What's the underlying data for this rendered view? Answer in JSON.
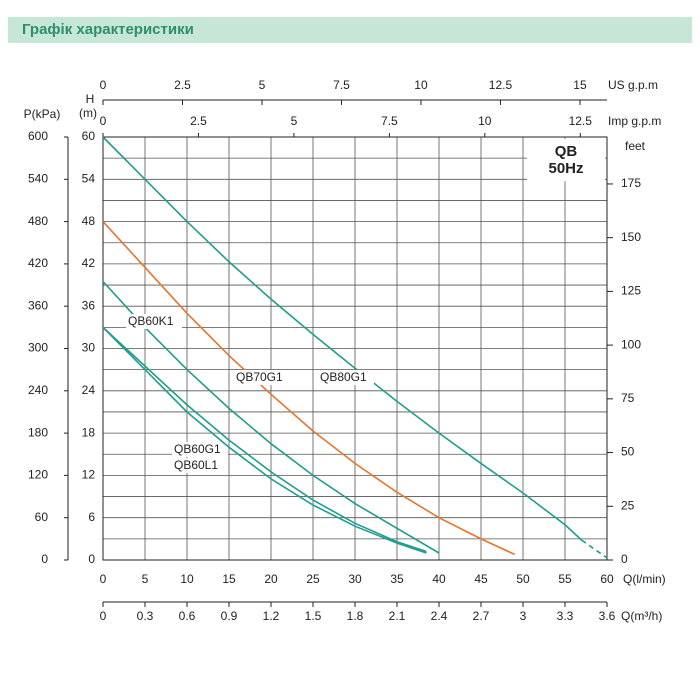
{
  "chart_data": {
    "type": "line",
    "title": "Графік характеристики",
    "annotation_lines": [
      "QB",
      "50Hz"
    ],
    "xlabel": "Q(l/min)",
    "xlim": [
      0,
      60
    ],
    "xticks": [
      0,
      5,
      10,
      15,
      20,
      25,
      30,
      35,
      40,
      45,
      50,
      55,
      60
    ],
    "ylabel": [
      "H",
      "(m)"
    ],
    "ylim": [
      0,
      60
    ],
    "yticks": [
      0,
      6,
      12,
      18,
      24,
      30,
      36,
      42,
      48,
      54,
      60
    ],
    "ygrid": [
      0,
      3,
      6,
      9,
      12,
      15,
      18,
      21,
      24,
      27,
      30,
      33,
      36,
      39,
      42,
      45,
      48,
      51,
      54,
      57,
      60
    ],
    "grid": true,
    "axes": {
      "pressure": {
        "label": "P(kPa)",
        "lim": [
          0,
          600
        ],
        "ticks": [
          0,
          60,
          120,
          180,
          240,
          300,
          360,
          420,
          480,
          540,
          600
        ]
      },
      "feet": {
        "label": "feet",
        "lim": [
          0,
          196.85
        ],
        "ticks": [
          0,
          25,
          50,
          75,
          100,
          125,
          150,
          175
        ]
      },
      "us_gpm": {
        "label": "US  g.p.m",
        "lim": [
          0,
          15.85
        ],
        "ticks": [
          0,
          2.5,
          5,
          7.5,
          10,
          12.5,
          15
        ]
      },
      "imp_gpm": {
        "label": "Imp  g.p.m",
        "lim": [
          0,
          13.2
        ],
        "ticks": [
          0,
          2.5,
          5,
          7.5,
          10,
          12.5
        ]
      },
      "m3h": {
        "label": "Q(m³/h)",
        "lim": [
          0,
          3.6
        ],
        "ticks": [
          0,
          0.3,
          0.6,
          0.9,
          1.2,
          1.5,
          1.8,
          2.1,
          2.4,
          2.7,
          3,
          3.3,
          3.6
        ]
      }
    },
    "series": [
      {
        "name": "QB80G1",
        "color": "#1f9d8e",
        "dashed_from": 57,
        "x": [
          0,
          5,
          10,
          15,
          20,
          25,
          30,
          35,
          40,
          45,
          50,
          55,
          57,
          60
        ],
        "values": [
          60,
          54,
          48,
          42.3,
          37,
          32,
          27.2,
          22.5,
          18,
          13.7,
          9.5,
          5,
          2.8,
          0.3
        ]
      },
      {
        "name": "QB70G1",
        "color": "#e8742c",
        "x": [
          0,
          5,
          10,
          15,
          20,
          25,
          30,
          35,
          40,
          45,
          49
        ],
        "values": [
          48,
          41.5,
          35,
          29,
          23.5,
          18.3,
          13.7,
          9.6,
          6,
          3,
          0.8
        ]
      },
      {
        "name": "QB60K1",
        "color": "#1f9d8e",
        "x": [
          0,
          5,
          10,
          15,
          20,
          25,
          30,
          35,
          40
        ],
        "values": [
          39.5,
          33,
          27,
          21.5,
          16.5,
          12,
          8,
          4.5,
          1
        ]
      },
      {
        "name": "QB60G1",
        "color": "#1f9d8e",
        "x": [
          0,
          5,
          10,
          15,
          20,
          25,
          30,
          35,
          38.5
        ],
        "values": [
          33,
          27.5,
          22,
          17,
          12.5,
          8.5,
          5.2,
          2.6,
          1.2
        ]
      },
      {
        "name": "QB60L1",
        "color": "#1f9d8e",
        "x": [
          0,
          5,
          10,
          15,
          20,
          25,
          30,
          35,
          38.5
        ],
        "values": [
          33,
          27,
          21,
          16,
          11.5,
          7.8,
          4.8,
          2.4,
          1
        ]
      }
    ]
  }
}
